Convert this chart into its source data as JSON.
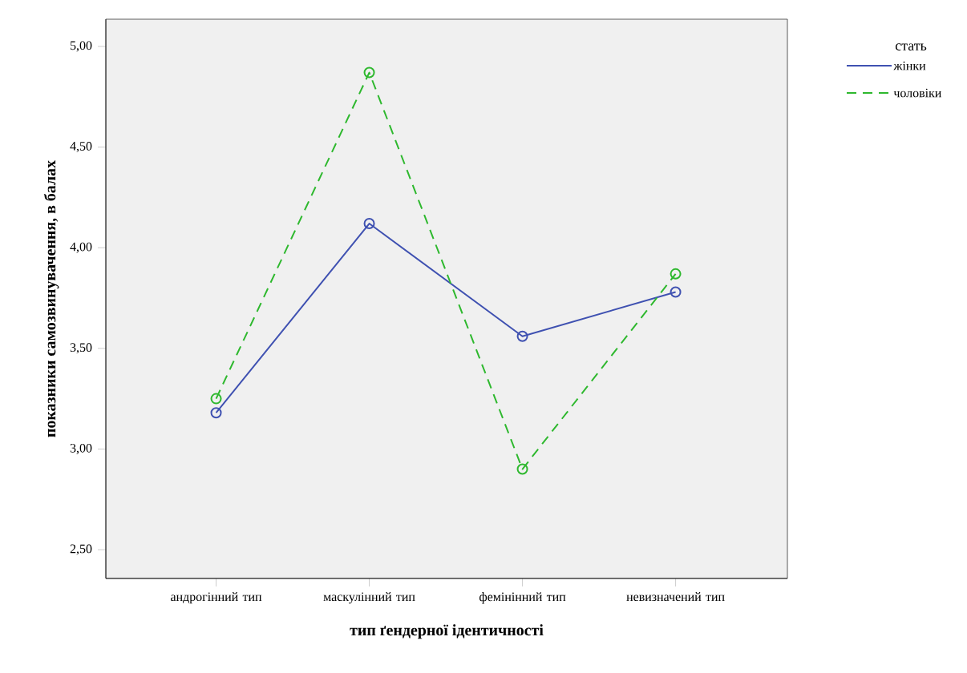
{
  "chart_data": {
    "type": "line",
    "xlabel": "тип ґендерної ідентичності",
    "ylabel": "показники самозвинувачення, в балах",
    "legend_title": "стать",
    "categories": [
      "андрогінний тип",
      "маскулінний тип",
      "фемінінний тип",
      "невизначений тип"
    ],
    "series": [
      {
        "name": "жінки",
        "color": "#3f51b1",
        "values": [
          3.18,
          4.12,
          3.56,
          3.78
        ],
        "line_style": "solid"
      },
      {
        "name": "чоловіки",
        "color": "#2eb82e",
        "values": [
          3.25,
          4.87,
          2.9,
          3.87
        ],
        "line_style": "dashed"
      }
    ],
    "ylim": [
      2.357,
      5.135
    ],
    "yticks": [
      {
        "value": 2.5,
        "label": "2,50"
      },
      {
        "value": 3,
        "label": "3,00"
      },
      {
        "value": 3.5,
        "label": "3,50"
      },
      {
        "value": 4,
        "label": "4,00"
      },
      {
        "value": 4.5,
        "label": "4,50"
      },
      {
        "value": 5,
        "label": "5,00"
      }
    ],
    "marker": "circle",
    "legend": "top right",
    "grid": false
  }
}
